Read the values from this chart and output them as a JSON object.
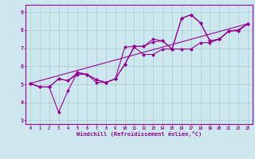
{
  "xlabel": "Windchill (Refroidissement éolien,°C)",
  "bg_color": "#cce8ee",
  "line_color": "#990099",
  "grid_color": "#aacccc",
  "xlim": [
    -0.5,
    23.5
  ],
  "ylim": [
    2.8,
    9.4
  ],
  "xticks": [
    0,
    1,
    2,
    3,
    4,
    5,
    6,
    7,
    8,
    9,
    10,
    11,
    12,
    13,
    14,
    15,
    16,
    17,
    18,
    19,
    20,
    21,
    22,
    23
  ],
  "yticks": [
    3,
    4,
    5,
    6,
    7,
    8,
    9
  ],
  "series1_x": [
    0,
    1,
    2,
    3,
    4,
    5,
    6,
    7,
    8,
    9,
    10,
    11,
    12,
    13,
    14,
    15,
    16,
    17,
    18,
    19,
    20,
    21,
    22,
    23
  ],
  "series1_y": [
    5.05,
    4.85,
    4.85,
    3.45,
    4.65,
    5.65,
    5.55,
    5.1,
    5.1,
    5.3,
    7.05,
    7.1,
    7.1,
    7.5,
    7.4,
    6.95,
    8.65,
    8.85,
    8.4,
    7.4,
    7.5,
    7.95,
    8.0,
    8.35
  ],
  "series2_x": [
    0,
    1,
    2,
    3,
    4,
    5,
    6,
    7,
    8,
    9,
    10,
    11,
    12,
    13,
    14,
    15,
    16,
    17,
    18,
    19,
    20,
    21,
    22,
    23
  ],
  "series2_y": [
    5.05,
    4.85,
    4.85,
    5.3,
    5.2,
    5.65,
    5.55,
    5.25,
    5.1,
    5.3,
    6.1,
    7.05,
    6.65,
    6.65,
    6.95,
    6.95,
    6.95,
    6.95,
    7.3,
    7.3,
    7.5,
    7.95,
    7.95,
    8.35
  ],
  "series3_x": [
    0,
    23
  ],
  "series3_y": [
    5.05,
    8.35
  ],
  "series4_x": [
    0,
    1,
    2,
    3,
    4,
    5,
    6,
    7,
    8,
    9,
    10,
    11,
    12,
    13,
    14,
    15,
    16,
    17,
    18,
    19,
    20,
    21,
    22,
    23
  ],
  "series4_y": [
    5.05,
    4.85,
    4.85,
    5.3,
    5.2,
    5.55,
    5.55,
    5.25,
    5.1,
    5.3,
    6.1,
    7.1,
    7.1,
    7.35,
    7.4,
    6.95,
    8.65,
    8.85,
    8.4,
    7.4,
    7.5,
    7.95,
    8.0,
    8.35
  ]
}
